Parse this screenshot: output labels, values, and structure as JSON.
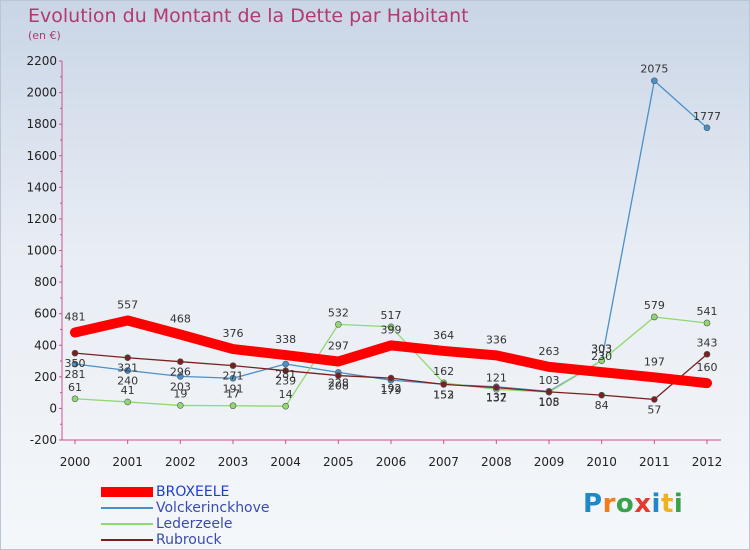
{
  "header": {
    "title": "Evolution du Montant de la Dette par Habitant",
    "subtitle": "(en €)"
  },
  "logo": {
    "text": "Proxiti",
    "colors": [
      "#1e88c9",
      "#f07d1a",
      "#3aa24a",
      "#e63a2e",
      "#1e88c9",
      "#f2b01e",
      "#3aa24a"
    ]
  },
  "chart_data": {
    "type": "line",
    "x": [
      2000,
      2001,
      2002,
      2003,
      2004,
      2005,
      2006,
      2007,
      2008,
      2009,
      2010,
      2011,
      2012
    ],
    "ylim": [
      -200,
      2200
    ],
    "yticks": [
      -200,
      0,
      200,
      400,
      600,
      800,
      1000,
      1200,
      1400,
      1600,
      1800,
      2000,
      2200
    ],
    "grid": false,
    "legend_position": "bottom-left",
    "series": [
      {
        "name": "BROXEELE",
        "color": "#ff0000",
        "values": [
          481,
          557,
          468,
          376,
          338,
          297,
          399,
          364,
          336,
          263,
          230,
          197,
          160
        ]
      },
      {
        "name": "Volckerinckhove",
        "color": "#4a90c8",
        "values": [
          281,
          240,
          203,
          191,
          281,
          228,
          179,
          153,
          137,
          108,
          303,
          2075,
          1777
        ]
      },
      {
        "name": "Lederzeele",
        "color": "#90d870",
        "values": [
          61,
          41,
          19,
          17,
          14,
          532,
          517,
          162,
          121,
          103,
          303,
          579,
          541
        ]
      },
      {
        "name": "Rubrouck",
        "color": "#7a2020",
        "values": [
          350,
          321,
          296,
          271,
          239,
          208,
          192,
          152,
          132,
          105,
          84,
          57,
          343
        ]
      }
    ]
  }
}
